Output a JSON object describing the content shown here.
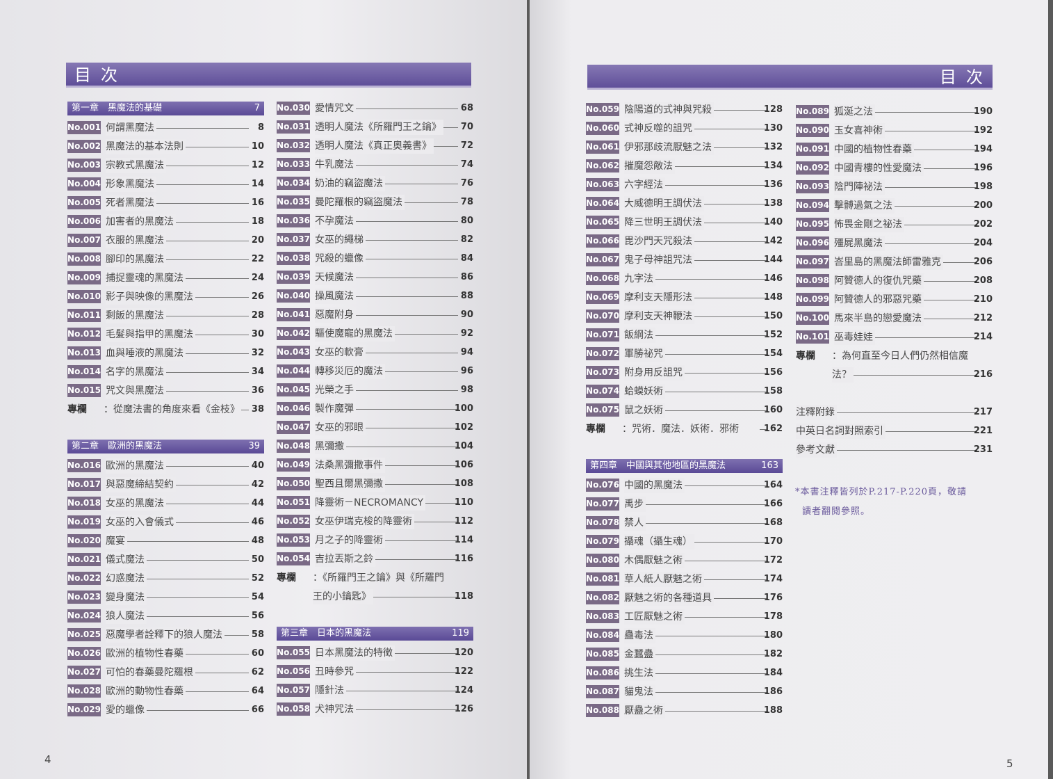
{
  "title_left": "目次",
  "title_right": "目次",
  "page_left": "4",
  "page_right": "5",
  "accent": "#5f4f99",
  "columns": [
    [
      {
        "type": "chapter",
        "title": "第一章　黑魔法的基礎",
        "page": "7"
      },
      {
        "type": "item",
        "no": "No.001",
        "title": "何謂黑魔法",
        "page": "8"
      },
      {
        "type": "item",
        "no": "No.002",
        "title": "黑魔法的基本法則",
        "page": "10"
      },
      {
        "type": "item",
        "no": "No.003",
        "title": "宗教式黑魔法",
        "page": "12"
      },
      {
        "type": "item",
        "no": "No.004",
        "title": "形象黑魔法",
        "page": "14"
      },
      {
        "type": "item",
        "no": "No.005",
        "title": "死者黑魔法",
        "page": "16"
      },
      {
        "type": "item",
        "no": "No.006",
        "title": "加害者的黑魔法",
        "page": "18"
      },
      {
        "type": "item",
        "no": "No.007",
        "title": "衣服的黑魔法",
        "page": "20"
      },
      {
        "type": "item",
        "no": "No.008",
        "title": "腳印的黑魔法",
        "page": "22"
      },
      {
        "type": "item",
        "no": "No.009",
        "title": "捕捉靈魂的黑魔法",
        "page": "24"
      },
      {
        "type": "item",
        "no": "No.010",
        "title": "影子與映像的黑魔法",
        "page": "26"
      },
      {
        "type": "item",
        "no": "No.011",
        "title": "剩飯的黑魔法",
        "page": "28"
      },
      {
        "type": "item",
        "no": "No.012",
        "title": "毛髮與指甲的黑魔法",
        "page": "30"
      },
      {
        "type": "item",
        "no": "No.013",
        "title": "血與唾液的黑魔法",
        "page": "32"
      },
      {
        "type": "item",
        "no": "No.014",
        "title": "名字的黑魔法",
        "page": "34"
      },
      {
        "type": "item",
        "no": "No.015",
        "title": "咒文與黑魔法",
        "page": "36"
      },
      {
        "type": "column",
        "label": "專欄",
        "title": "：從魔法書的角度來看《金枝》",
        "page": "38"
      },
      {
        "type": "blank"
      },
      {
        "type": "chapter",
        "title": "第二章　歐洲的黑魔法",
        "page": "39"
      },
      {
        "type": "item",
        "no": "No.016",
        "title": "歐洲的黑魔法",
        "page": "40"
      },
      {
        "type": "item",
        "no": "No.017",
        "title": "與惡魔締結契約",
        "page": "42"
      },
      {
        "type": "item",
        "no": "No.018",
        "title": "女巫的黑魔法",
        "page": "44"
      },
      {
        "type": "item",
        "no": "No.019",
        "title": "女巫的入會儀式",
        "page": "46"
      },
      {
        "type": "item",
        "no": "No.020",
        "title": "魔宴",
        "page": "48"
      },
      {
        "type": "item",
        "no": "No.021",
        "title": "儀式魔法",
        "page": "50"
      },
      {
        "type": "item",
        "no": "No.022",
        "title": "幻惑魔法",
        "page": "52"
      },
      {
        "type": "item",
        "no": "No.023",
        "title": "變身魔法",
        "page": "54"
      },
      {
        "type": "item",
        "no": "No.024",
        "title": "狼人魔法",
        "page": "56"
      },
      {
        "type": "item",
        "no": "No.025",
        "title": "惡魔學者詮釋下的狼人魔法",
        "page": "58"
      },
      {
        "type": "item",
        "no": "No.026",
        "title": "歐洲的植物性春藥",
        "page": "60"
      },
      {
        "type": "item",
        "no": "No.027",
        "title": "可怕的春藥曼陀羅根",
        "page": "62"
      },
      {
        "type": "item",
        "no": "No.028",
        "title": "歐洲的動物性春藥",
        "page": "64"
      },
      {
        "type": "item",
        "no": "No.029",
        "title": "愛的蠟像",
        "page": "66"
      }
    ],
    [
      {
        "type": "item",
        "no": "No.030",
        "title": "愛情咒文",
        "page": "68"
      },
      {
        "type": "item",
        "no": "No.031",
        "title": "透明人魔法《所羅門王之鑰》",
        "page": "70"
      },
      {
        "type": "item",
        "no": "No.032",
        "title": "透明人魔法《真正奧義書》",
        "page": "72"
      },
      {
        "type": "item",
        "no": "No.033",
        "title": "牛乳魔法",
        "page": "74"
      },
      {
        "type": "item",
        "no": "No.034",
        "title": "奶油的竊盜魔法",
        "page": "76"
      },
      {
        "type": "item",
        "no": "No.035",
        "title": "曼陀羅根的竊盜魔法",
        "page": "78"
      },
      {
        "type": "item",
        "no": "No.036",
        "title": "不孕魔法",
        "page": "80"
      },
      {
        "type": "item",
        "no": "No.037",
        "title": "女巫的繩梯",
        "page": "82"
      },
      {
        "type": "item",
        "no": "No.038",
        "title": "咒殺的蠟像",
        "page": "84"
      },
      {
        "type": "item",
        "no": "No.039",
        "title": "天候魔法",
        "page": "86"
      },
      {
        "type": "item",
        "no": "No.040",
        "title": "操風魔法",
        "page": "88"
      },
      {
        "type": "item",
        "no": "No.041",
        "title": "惡魔附身",
        "page": "90"
      },
      {
        "type": "item",
        "no": "No.042",
        "title": "驅使魔寵的黑魔法",
        "page": "92"
      },
      {
        "type": "item",
        "no": "No.043",
        "title": "女巫的軟膏",
        "page": "94"
      },
      {
        "type": "item",
        "no": "No.044",
        "title": "轉移災厄的魔法",
        "page": "96"
      },
      {
        "type": "item",
        "no": "No.045",
        "title": "光榮之手",
        "page": "98"
      },
      {
        "type": "item",
        "no": "No.046",
        "title": "製作魔彈",
        "page": "100"
      },
      {
        "type": "item",
        "no": "No.047",
        "title": "女巫的邪眼",
        "page": "102"
      },
      {
        "type": "item",
        "no": "No.048",
        "title": "黑彌撒",
        "page": "104"
      },
      {
        "type": "item",
        "no": "No.049",
        "title": "法桑黑彌撒事件",
        "page": "106"
      },
      {
        "type": "item",
        "no": "No.050",
        "title": "聖西且爾黑彌撒",
        "page": "108"
      },
      {
        "type": "item",
        "no": "No.051",
        "title": "降靈術－NECROMANCY",
        "page": "110"
      },
      {
        "type": "item",
        "no": "No.052",
        "title": "女巫伊瑞克梭的降靈術",
        "page": "112"
      },
      {
        "type": "item",
        "no": "No.053",
        "title": "月之子的降靈術",
        "page": "114"
      },
      {
        "type": "item",
        "no": "No.054",
        "title": "吉拉丟斯之鈴",
        "page": "116"
      },
      {
        "type": "column",
        "label": "專欄",
        "title": "：《所羅門王之鑰》與《所羅門",
        "page": ""
      },
      {
        "type": "cont",
        "title": "王的小鑰匙》",
        "page": "118"
      },
      {
        "type": "blank"
      },
      {
        "type": "chapter",
        "title": "第三章　日本的黑魔法",
        "page": "119"
      },
      {
        "type": "item",
        "no": "No.055",
        "title": "日本黑魔法的特徵",
        "page": "120"
      },
      {
        "type": "item",
        "no": "No.056",
        "title": "丑時參咒",
        "page": "122"
      },
      {
        "type": "item",
        "no": "No.057",
        "title": "隱針法",
        "page": "124"
      },
      {
        "type": "item",
        "no": "No.058",
        "title": "犬神咒法",
        "page": "126"
      }
    ],
    [
      {
        "type": "item",
        "no": "No.059",
        "title": "陰陽道的式神與咒殺",
        "page": "128"
      },
      {
        "type": "item",
        "no": "No.060",
        "title": "式神反噬的詛咒",
        "page": "130"
      },
      {
        "type": "item",
        "no": "No.061",
        "title": "伊邪那歧流厭魅之法",
        "page": "132"
      },
      {
        "type": "item",
        "no": "No.062",
        "title": "摧魔怨敵法",
        "page": "134"
      },
      {
        "type": "item",
        "no": "No.063",
        "title": "六字經法",
        "page": "136"
      },
      {
        "type": "item",
        "no": "No.064",
        "title": "大威德明王調伏法",
        "page": "138"
      },
      {
        "type": "item",
        "no": "No.065",
        "title": "降三世明王調伏法",
        "page": "140"
      },
      {
        "type": "item",
        "no": "No.066",
        "title": "毘沙門天咒殺法",
        "page": "142"
      },
      {
        "type": "item",
        "no": "No.067",
        "title": "鬼子母神詛咒法",
        "page": "144"
      },
      {
        "type": "item",
        "no": "No.068",
        "title": "九字法",
        "page": "146"
      },
      {
        "type": "item",
        "no": "No.069",
        "title": "摩利支天隱形法",
        "page": "148"
      },
      {
        "type": "item",
        "no": "No.070",
        "title": "摩利支天神鞭法",
        "page": "150"
      },
      {
        "type": "item",
        "no": "No.071",
        "title": "飯綱法",
        "page": "152"
      },
      {
        "type": "item",
        "no": "No.072",
        "title": "軍勝祕咒",
        "page": "154"
      },
      {
        "type": "item",
        "no": "No.073",
        "title": "附身用反詛咒",
        "page": "156"
      },
      {
        "type": "item",
        "no": "No.074",
        "title": "蛤蟆妖術",
        "page": "158"
      },
      {
        "type": "item",
        "no": "No.075",
        "title": "鼠之妖術",
        "page": "160"
      },
      {
        "type": "column",
        "label": "專欄",
        "title": "：咒術．魔法．妖術．邪術",
        "page": "162"
      },
      {
        "type": "blank"
      },
      {
        "type": "chapter",
        "title": "第四章　中國與其他地區的黑魔法",
        "page": "163"
      },
      {
        "type": "item",
        "no": "No.076",
        "title": "中國的黑魔法",
        "page": "164"
      },
      {
        "type": "item",
        "no": "No.077",
        "title": "禹步",
        "page": "166"
      },
      {
        "type": "item",
        "no": "No.078",
        "title": "禁人",
        "page": "168"
      },
      {
        "type": "item",
        "no": "No.079",
        "title": "攝魂（攝生魂）",
        "page": "170"
      },
      {
        "type": "item",
        "no": "No.080",
        "title": "木偶厭魅之術",
        "page": "172"
      },
      {
        "type": "item",
        "no": "No.081",
        "title": "草人紙人厭魅之術",
        "page": "174"
      },
      {
        "type": "item",
        "no": "No.082",
        "title": "厭魅之術的各種道具",
        "page": "176"
      },
      {
        "type": "item",
        "no": "No.083",
        "title": "工匠厭魅之術",
        "page": "178"
      },
      {
        "type": "item",
        "no": "No.084",
        "title": "蠱毒法",
        "page": "180"
      },
      {
        "type": "item",
        "no": "No.085",
        "title": "金蠶蠱",
        "page": "182"
      },
      {
        "type": "item",
        "no": "No.086",
        "title": "挑生法",
        "page": "184"
      },
      {
        "type": "item",
        "no": "No.087",
        "title": "貓鬼法",
        "page": "186"
      },
      {
        "type": "item",
        "no": "No.088",
        "title": "厭蠱之術",
        "page": "188"
      }
    ],
    [
      {
        "type": "item",
        "no": "No.089",
        "title": "狐涎之法",
        "page": "190"
      },
      {
        "type": "item",
        "no": "No.090",
        "title": "玉女喜神術",
        "page": "192"
      },
      {
        "type": "item",
        "no": "No.091",
        "title": "中國的植物性春藥",
        "page": "194"
      },
      {
        "type": "item",
        "no": "No.092",
        "title": "中國青樓的性愛魔法",
        "page": "196"
      },
      {
        "type": "item",
        "no": "No.093",
        "title": "陰門陣祕法",
        "page": "198"
      },
      {
        "type": "item",
        "no": "No.094",
        "title": "擊髆過氣之法",
        "page": "200"
      },
      {
        "type": "item",
        "no": "No.095",
        "title": "怖畏金剛之祕法",
        "page": "202"
      },
      {
        "type": "item",
        "no": "No.096",
        "title": "殭屍黑魔法",
        "page": "204"
      },
      {
        "type": "item",
        "no": "No.097",
        "title": "峇里島的黑魔法師雷雅克",
        "page": "206"
      },
      {
        "type": "item",
        "no": "No.098",
        "title": "阿贊德人的復仇咒藥",
        "page": "208"
      },
      {
        "type": "item",
        "no": "No.099",
        "title": "阿贊德人的邪惡咒藥",
        "page": "210"
      },
      {
        "type": "item",
        "no": "No.100",
        "title": "馬來半島的戀愛魔法",
        "page": "212"
      },
      {
        "type": "item",
        "no": "No.101",
        "title": "巫毒娃娃",
        "page": "214"
      },
      {
        "type": "column",
        "label": "專欄",
        "title": "：為何直至今日人們仍然相信魔",
        "page": ""
      },
      {
        "type": "cont",
        "title": "法？",
        "page": "216"
      },
      {
        "type": "blank"
      },
      {
        "type": "plain",
        "title": "注釋附錄",
        "page": "217"
      },
      {
        "type": "plain",
        "title": "中英日名詞對照索引",
        "page": "221"
      },
      {
        "type": "plain",
        "title": "參考文獻",
        "page": "231"
      }
    ]
  ],
  "note_line1": "*本書注釋皆列於P.217-P.220頁，敬請",
  "note_line2": "讀者翻閱參照。"
}
